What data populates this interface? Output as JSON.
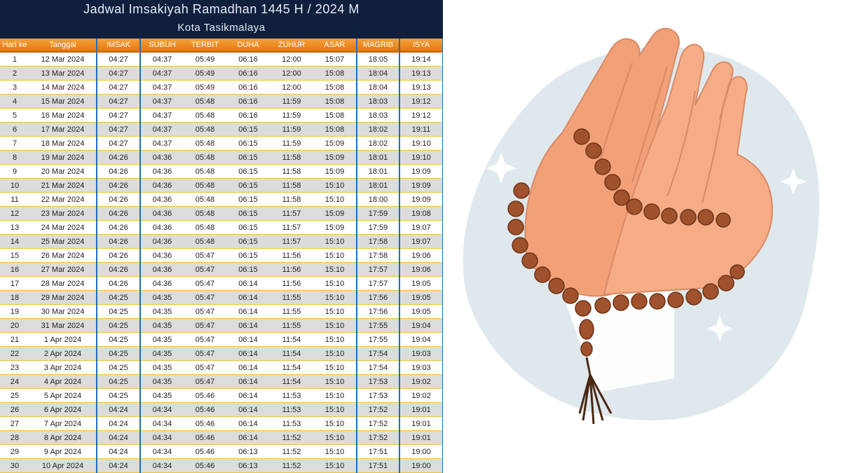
{
  "header": {
    "title": "Jadwal Imsakiyah Ramadhan 1445 H / 2024 M",
    "subtitle": "Kota Tasikmalaya"
  },
  "table": {
    "columns": [
      "Hari ke",
      "Tanggal",
      "IMSAK",
      "SUBUH",
      "TERBIT",
      "DUHA",
      "ZUHUR",
      "ASAR",
      "MAGRIB",
      "ISYA"
    ],
    "rows": [
      [
        "1",
        "12 Mar 2024",
        "04:27",
        "04:37",
        "05:49",
        "06:16",
        "12:00",
        "15:07",
        "18:05",
        "19:14"
      ],
      [
        "2",
        "13 Mar 2024",
        "04:27",
        "04:37",
        "05:49",
        "06:16",
        "12:00",
        "15:08",
        "18:04",
        "19:13"
      ],
      [
        "3",
        "14 Mar 2024",
        "04:27",
        "04:37",
        "05:49",
        "06:16",
        "12:00",
        "15:08",
        "18:04",
        "19:13"
      ],
      [
        "4",
        "15 Mar 2024",
        "04:27",
        "04:37",
        "05:48",
        "06:16",
        "11:59",
        "15:08",
        "18:03",
        "19:12"
      ],
      [
        "5",
        "16 Mar 2024",
        "04:27",
        "04:37",
        "05:48",
        "06:16",
        "11:59",
        "15:08",
        "18:03",
        "19:12"
      ],
      [
        "6",
        "17 Mar 2024",
        "04:27",
        "04:37",
        "05:48",
        "06:15",
        "11:59",
        "15:08",
        "18:02",
        "19:11"
      ],
      [
        "7",
        "18 Mar 2024",
        "04:27",
        "04:37",
        "05:48",
        "06:15",
        "11:59",
        "15:09",
        "18:02",
        "19:10"
      ],
      [
        "8",
        "19 Mar 2024",
        "04:26",
        "04:36",
        "05:48",
        "06:15",
        "11:58",
        "15:09",
        "18:01",
        "19:10"
      ],
      [
        "9",
        "20 Mar 2024",
        "04:26",
        "04:36",
        "05:48",
        "06:15",
        "11:58",
        "15:09",
        "18:01",
        "19:09"
      ],
      [
        "10",
        "21 Mar 2024",
        "04:26",
        "04:36",
        "05:48",
        "06:15",
        "11:58",
        "15:10",
        "18:01",
        "19:09"
      ],
      [
        "11",
        "22 Mar 2024",
        "04:26",
        "04:36",
        "05:48",
        "06:15",
        "11:58",
        "15:10",
        "18:00",
        "19:09"
      ],
      [
        "12",
        "23 Mar 2024",
        "04:26",
        "04:36",
        "05:48",
        "06:15",
        "11:57",
        "15:09",
        "17:59",
        "19:08"
      ],
      [
        "13",
        "24 Mar 2024",
        "04:26",
        "04:36",
        "05:48",
        "06:15",
        "11:57",
        "15:09",
        "17:59",
        "19:07"
      ],
      [
        "14",
        "25 Mar 2024",
        "04:26",
        "04:36",
        "05:48",
        "06:15",
        "11:57",
        "15:10",
        "17:58",
        "19:07"
      ],
      [
        "15",
        "26 Mar 2024",
        "04:26",
        "04:36",
        "05:47",
        "06:15",
        "11:56",
        "15:10",
        "17:58",
        "19:06"
      ],
      [
        "16",
        "27 Mar 2024",
        "04:26",
        "04:36",
        "05:47",
        "06:15",
        "11:56",
        "15:10",
        "17:57",
        "19:06"
      ],
      [
        "17",
        "28 Mar 2024",
        "04:26",
        "04:36",
        "05:47",
        "06:14",
        "11:56",
        "15:10",
        "17:57",
        "19:05"
      ],
      [
        "18",
        "29 Mar 2024",
        "04:25",
        "04:35",
        "05:47",
        "06:14",
        "11:55",
        "15:10",
        "17:56",
        "19:05"
      ],
      [
        "19",
        "30 Mar 2024",
        "04:25",
        "04:35",
        "05:47",
        "06:14",
        "11:55",
        "15:10",
        "17:56",
        "19:05"
      ],
      [
        "20",
        "31 Mar 2024",
        "04:25",
        "04:35",
        "05:47",
        "06:14",
        "11:55",
        "15:10",
        "17:55",
        "19:04"
      ],
      [
        "21",
        "1 Apr 2024",
        "04:25",
        "04:35",
        "05:47",
        "06:14",
        "11:54",
        "15:10",
        "17:55",
        "19:04"
      ],
      [
        "22",
        "2 Apr 2024",
        "04:25",
        "04:35",
        "05:47",
        "06:14",
        "11:54",
        "15:10",
        "17:54",
        "19:03"
      ],
      [
        "23",
        "3 Apr 2024",
        "04:25",
        "04:35",
        "05:47",
        "06:14",
        "11:54",
        "15:10",
        "17:54",
        "19:03"
      ],
      [
        "24",
        "4 Apr 2024",
        "04:25",
        "04:35",
        "05:47",
        "06:14",
        "11:54",
        "15:10",
        "17:53",
        "19:02"
      ],
      [
        "25",
        "5 Apr 2024",
        "04:25",
        "04:35",
        "05:46",
        "06:14",
        "11:53",
        "15:10",
        "17:53",
        "19:02"
      ],
      [
        "26",
        "6 Apr 2024",
        "04:24",
        "04:34",
        "05:46",
        "06:14",
        "11:53",
        "15:10",
        "17:52",
        "19:01"
      ],
      [
        "27",
        "7 Apr 2024",
        "04:24",
        "04:34",
        "05:46",
        "06:14",
        "11:53",
        "15:10",
        "17:52",
        "19:01"
      ],
      [
        "28",
        "8 Apr 2024",
        "04:24",
        "04:34",
        "05:46",
        "06:14",
        "11:52",
        "15:10",
        "17:52",
        "19:01"
      ],
      [
        "29",
        "9 Apr 2024",
        "04:24",
        "04:34",
        "05:46",
        "06:13",
        "11:52",
        "15:10",
        "17:51",
        "19:00"
      ],
      [
        "30",
        "10 Apr 2024",
        "04:24",
        "04:34",
        "05:46",
        "06:13",
        "11:52",
        "15:10",
        "17:51",
        "19:00"
      ]
    ]
  }
}
